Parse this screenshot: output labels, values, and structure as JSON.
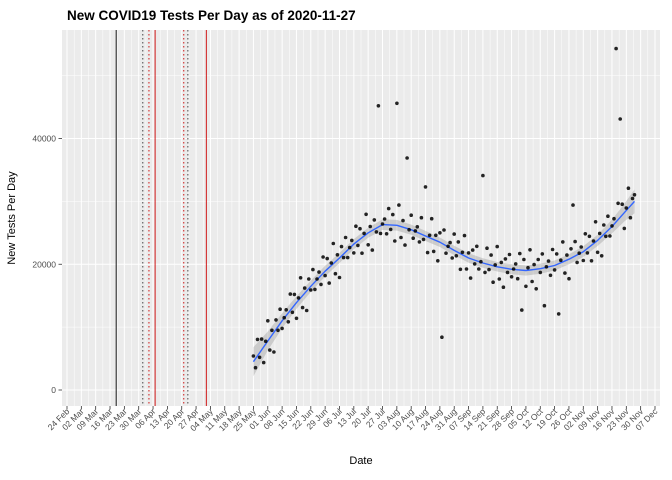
{
  "chart_data": {
    "type": "scatter",
    "title": "New COVID19 Tests Per Day as of 2020-11-27",
    "xlabel": "Date",
    "ylabel": "New Tests Per Day",
    "x_unit": "days since 24 Feb 2020",
    "grid": true,
    "legend": "none",
    "panel_bg": "#EBEBEB",
    "grid_color": "#FFFFFF",
    "point_color": "#000000",
    "smooth_color": "#3366FF",
    "ribbon_color": "#8C8C8C",
    "axis_text_color": "#4D4D4D",
    "y_ticks": [
      0,
      20000,
      40000
    ],
    "y_tick_labels": [
      "0",
      "20000",
      "40000"
    ],
    "y_minor": [
      10000,
      30000,
      50000
    ],
    "ylim": [
      -2500,
      57000
    ],
    "x_tick_days": [
      0,
      7,
      14,
      21,
      28,
      35,
      42,
      49,
      56,
      63,
      70,
      77,
      84,
      91,
      98,
      105,
      112,
      119,
      126,
      133,
      140,
      147,
      154,
      161,
      168,
      175,
      182,
      189,
      196,
      203,
      210,
      217,
      224,
      231,
      238,
      245,
      252,
      259,
      266,
      273,
      280,
      287
    ],
    "x_tick_labels": [
      "24 Feb",
      "02 Mar",
      "09 Mar",
      "16 Mar",
      "23 Mar",
      "30 Mar",
      "06 Apr",
      "13 Apr",
      "20 Apr",
      "27 Apr",
      "04 May",
      "11 May",
      "18 May",
      "25 May",
      "01 Jun",
      "08 Jun",
      "15 Jun",
      "22 Jun",
      "29 Jun",
      "06 Jul",
      "13 Jul",
      "20 Jul",
      "27 Jul",
      "03 Aug",
      "10 Aug",
      "17 Aug",
      "24 Aug",
      "31 Aug",
      "07 Sep",
      "14 Sep",
      "21 Sep",
      "28 Sep",
      "05 Oct",
      "12 Oct",
      "19 Oct",
      "26 Oct",
      "02 Nov",
      "09 Nov",
      "16 Nov",
      "23 Nov",
      "30 Nov",
      "07 Dec"
    ],
    "reference_lines": [
      {
        "day": 24,
        "color": "#000000",
        "style": "solid"
      },
      {
        "day": 37,
        "color": "#333333",
        "style": "dotted"
      },
      {
        "day": 40,
        "color": "#CC0000",
        "style": "dotted"
      },
      {
        "day": 43,
        "color": "#CC0000",
        "style": "solid"
      },
      {
        "day": 57,
        "color": "#CC0000",
        "style": "dotted"
      },
      {
        "day": 59,
        "color": "#333333",
        "style": "dotted"
      },
      {
        "day": 68,
        "color": "#CC0000",
        "style": "solid"
      }
    ],
    "smooth": [
      [
        91,
        4500
      ],
      [
        98,
        7800
      ],
      [
        105,
        11000
      ],
      [
        112,
        13900
      ],
      [
        119,
        16500
      ],
      [
        126,
        18900
      ],
      [
        133,
        21000
      ],
      [
        140,
        23200
      ],
      [
        147,
        25000
      ],
      [
        154,
        26300
      ],
      [
        161,
        26200
      ],
      [
        168,
        25500
      ],
      [
        175,
        24500
      ],
      [
        182,
        23500
      ],
      [
        189,
        22200
      ],
      [
        196,
        21000
      ],
      [
        203,
        20200
      ],
      [
        210,
        19600
      ],
      [
        217,
        19200
      ],
      [
        224,
        19000
      ],
      [
        231,
        19300
      ],
      [
        238,
        19800
      ],
      [
        245,
        20800
      ],
      [
        252,
        22000
      ],
      [
        259,
        23800
      ],
      [
        266,
        26000
      ],
      [
        272,
        28200
      ],
      [
        277,
        30000
      ]
    ],
    "ribbon_halfwidth": [
      2300,
      1500,
      1200,
      1000,
      900,
      850,
      800,
      800,
      800,
      850,
      850,
      800,
      800,
      750,
      750,
      750,
      750,
      750,
      800,
      800,
      800,
      800,
      800,
      850,
      900,
      1100,
      1400,
      1900
    ],
    "points": [
      [
        91,
        5400
      ],
      [
        92,
        3550
      ],
      [
        93,
        8050
      ],
      [
        94,
        5200
      ],
      [
        95,
        8100
      ],
      [
        96,
        4350
      ],
      [
        97,
        7750
      ],
      [
        98,
        11000
      ],
      [
        99,
        6350
      ],
      [
        100,
        9500
      ],
      [
        101,
        6050
      ],
      [
        102,
        11150
      ],
      [
        103,
        9500
      ],
      [
        104,
        12850
      ],
      [
        105,
        9800
      ],
      [
        106,
        11500
      ],
      [
        107,
        12750
      ],
      [
        108,
        10850
      ],
      [
        109,
        15250
      ],
      [
        110,
        12350
      ],
      [
        111,
        15200
      ],
      [
        112,
        11400
      ],
      [
        113,
        14650
      ],
      [
        114,
        17850
      ],
      [
        115,
        13100
      ],
      [
        116,
        16200
      ],
      [
        117,
        12650
      ],
      [
        118,
        17650
      ],
      [
        119,
        15900
      ],
      [
        120,
        19150
      ],
      [
        121,
        16000
      ],
      [
        122,
        17650
      ],
      [
        123,
        18750
      ],
      [
        124,
        16800
      ],
      [
        125,
        21150
      ],
      [
        126,
        18200
      ],
      [
        127,
        20900
      ],
      [
        128,
        17000
      ],
      [
        129,
        20200
      ],
      [
        130,
        23300
      ],
      [
        131,
        18500
      ],
      [
        132,
        21500
      ],
      [
        133,
        17900
      ],
      [
        134,
        22800
      ],
      [
        135,
        21050
      ],
      [
        136,
        24250
      ],
      [
        137,
        21050
      ],
      [
        138,
        22650
      ],
      [
        139,
        23800
      ],
      [
        140,
        21800
      ],
      [
        141,
        26050
      ],
      [
        142,
        23000
      ],
      [
        143,
        25650
      ],
      [
        144,
        21750
      ],
      [
        145,
        24900
      ],
      [
        146,
        27950
      ],
      [
        147,
        23100
      ],
      [
        148,
        26000
      ],
      [
        149,
        22250
      ],
      [
        150,
        27050
      ],
      [
        151,
        25150
      ],
      [
        152,
        45200
      ],
      [
        153,
        24900
      ],
      [
        154,
        26400
      ],
      [
        155,
        27200
      ],
      [
        156,
        24850
      ],
      [
        157,
        28850
      ],
      [
        158,
        25550
      ],
      [
        159,
        27900
      ],
      [
        160,
        23700
      ],
      [
        161,
        45600
      ],
      [
        162,
        29400
      ],
      [
        163,
        24250
      ],
      [
        164,
        26950
      ],
      [
        165,
        23050
      ],
      [
        166,
        36900
      ],
      [
        167,
        25500
      ],
      [
        168,
        27800
      ],
      [
        169,
        24150
      ],
      [
        170,
        25300
      ],
      [
        171,
        25950
      ],
      [
        172,
        23550
      ],
      [
        173,
        27400
      ],
      [
        174,
        23950
      ],
      [
        175,
        32300
      ],
      [
        176,
        21850
      ],
      [
        177,
        24600
      ],
      [
        178,
        27250
      ],
      [
        179,
        22050
      ],
      [
        180,
        24600
      ],
      [
        181,
        20550
      ],
      [
        182,
        25000
      ],
      [
        183,
        8400
      ],
      [
        184,
        25450
      ],
      [
        185,
        21750
      ],
      [
        186,
        22850
      ],
      [
        187,
        23450
      ],
      [
        188,
        21000
      ],
      [
        189,
        24800
      ],
      [
        190,
        21350
      ],
      [
        191,
        23550
      ],
      [
        192,
        19200
      ],
      [
        193,
        21900
      ],
      [
        194,
        24550
      ],
      [
        195,
        19250
      ],
      [
        196,
        21800
      ],
      [
        197,
        17800
      ],
      [
        198,
        22250
      ],
      [
        199,
        20050
      ],
      [
        200,
        22850
      ],
      [
        201,
        19250
      ],
      [
        202,
        20400
      ],
      [
        203,
        34100
      ],
      [
        204,
        18700
      ],
      [
        205,
        22550
      ],
      [
        206,
        19150
      ],
      [
        207,
        21450
      ],
      [
        208,
        17150
      ],
      [
        209,
        19900
      ],
      [
        210,
        22800
      ],
      [
        211,
        17650
      ],
      [
        212,
        20300
      ],
      [
        213,
        16350
      ],
      [
        214,
        20850
      ],
      [
        215,
        18700
      ],
      [
        216,
        21550
      ],
      [
        217,
        18000
      ],
      [
        218,
        19250
      ],
      [
        219,
        20050
      ],
      [
        220,
        17700
      ],
      [
        221,
        21700
      ],
      [
        222,
        12700
      ],
      [
        223,
        20750
      ],
      [
        224,
        16500
      ],
      [
        225,
        19450
      ],
      [
        226,
        22300
      ],
      [
        227,
        17250
      ],
      [
        228,
        19950
      ],
      [
        229,
        16100
      ],
      [
        230,
        20750
      ],
      [
        231,
        18700
      ],
      [
        232,
        21650
      ],
      [
        233,
        13400
      ],
      [
        234,
        19600
      ],
      [
        235,
        20500
      ],
      [
        236,
        18250
      ],
      [
        237,
        22350
      ],
      [
        238,
        19100
      ],
      [
        239,
        21650
      ],
      [
        240,
        12100
      ],
      [
        241,
        20650
      ],
      [
        242,
        23550
      ],
      [
        243,
        18600
      ],
      [
        244,
        21450
      ],
      [
        245,
        17700
      ],
      [
        246,
        22450
      ],
      [
        247,
        29400
      ],
      [
        248,
        23600
      ],
      [
        249,
        20300
      ],
      [
        250,
        21750
      ],
      [
        251,
        22750
      ],
      [
        252,
        20600
      ],
      [
        253,
        24850
      ],
      [
        254,
        21800
      ],
      [
        255,
        24450
      ],
      [
        256,
        20550
      ],
      [
        257,
        23700
      ],
      [
        258,
        26750
      ],
      [
        259,
        21900
      ],
      [
        260,
        24900
      ],
      [
        261,
        21350
      ],
      [
        262,
        26250
      ],
      [
        263,
        24450
      ],
      [
        264,
        27650
      ],
      [
        265,
        24500
      ],
      [
        266,
        26100
      ],
      [
        267,
        27250
      ],
      [
        268,
        54300
      ],
      [
        269,
        29700
      ],
      [
        270,
        43100
      ],
      [
        271,
        29550
      ],
      [
        272,
        25700
      ],
      [
        273,
        28950
      ],
      [
        274,
        32100
      ],
      [
        275,
        27400
      ],
      [
        276,
        30450
      ],
      [
        277,
        31050
      ]
    ]
  }
}
